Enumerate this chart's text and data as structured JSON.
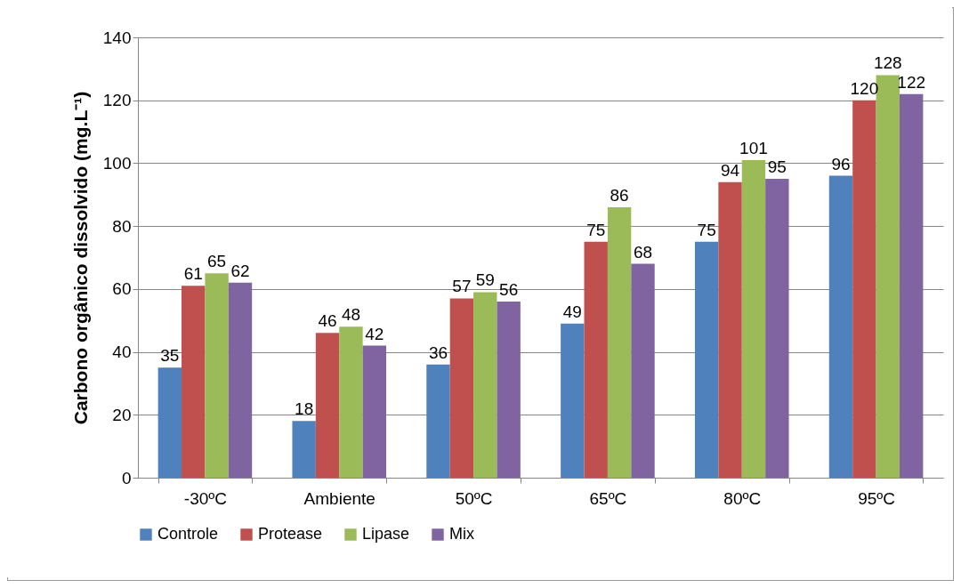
{
  "chart_data": {
    "type": "bar",
    "ylabel": "Carbono orgânico dissolvido (mg.L⁻¹)",
    "categories": [
      "-30ºC",
      "Ambiente",
      "50ºC",
      "65ºC",
      "80ºC",
      "95ºC"
    ],
    "series": [
      {
        "name": "Controle",
        "color": "#4f81bd",
        "values": [
          35,
          18,
          36,
          49,
          75,
          96
        ]
      },
      {
        "name": "Protease",
        "color": "#c0504d",
        "values": [
          61,
          46,
          57,
          75,
          94,
          120
        ]
      },
      {
        "name": "Lipase",
        "color": "#9bbb59",
        "values": [
          65,
          48,
          59,
          86,
          101,
          128
        ]
      },
      {
        "name": "Mix",
        "color": "#8064a2",
        "values": [
          62,
          42,
          56,
          68,
          95,
          122
        ]
      }
    ],
    "ylim": [
      0,
      140
    ],
    "yticks": [
      0,
      20,
      40,
      60,
      80,
      100,
      120,
      140
    ],
    "grid": "y",
    "legend": "bottom",
    "data_labels": true
  }
}
